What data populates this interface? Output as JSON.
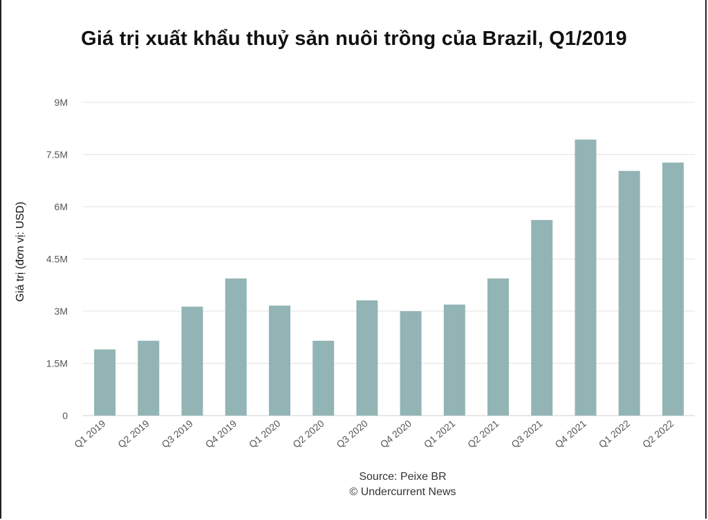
{
  "chart_data": {
    "type": "bar",
    "title": "Giá trị xuất khẩu thuỷ sản nuôi trồng của Brazil, Q1/2019",
    "ylabel": "Giá trị (đơn vị: USD)",
    "xlabel": "",
    "categories": [
      "Q1 2019",
      "Q2 2019",
      "Q3 2019",
      "Q4 2019",
      "Q1 2020",
      "Q2 2020",
      "Q3 2020",
      "Q4 2020",
      "Q1 2021",
      "Q2 2021",
      "Q3 2021",
      "Q4 2021",
      "Q1 2022",
      "Q2 2022"
    ],
    "values": [
      1900000,
      2150000,
      3130000,
      3940000,
      3160000,
      2150000,
      3310000,
      3000000,
      3190000,
      3940000,
      5620000,
      7930000,
      7030000,
      7270000
    ],
    "ylim": [
      0,
      9000000
    ],
    "yticks": [
      0,
      1500000,
      3000000,
      4500000,
      6000000,
      7500000,
      9000000
    ],
    "ytick_labels": [
      "0",
      "1.5M",
      "3M",
      "4.5M",
      "6M",
      "7.5M",
      "9M"
    ],
    "grid": true,
    "bar_color": "#93b4b4",
    "source": "Source: Peixe BR",
    "credit": "© Undercurrent News"
  }
}
